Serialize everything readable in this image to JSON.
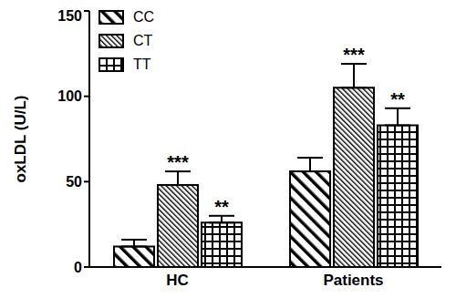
{
  "chart_data": {
    "type": "bar",
    "y_label": "oxLDL (U/L)",
    "categories": [
      "HC",
      "Patients"
    ],
    "ylim": [
      0,
      150
    ],
    "yticks": [
      0,
      50,
      100,
      150
    ],
    "grid": false,
    "legend": "upper left",
    "series": [
      {
        "name": "CC",
        "color": "#000000",
        "values": [
          12,
          56
        ],
        "errors": [
          4,
          8
        ],
        "annotations": [
          null,
          null
        ]
      },
      {
        "name": "CT",
        "color": "#000000",
        "values": [
          48,
          105
        ],
        "errors": [
          8,
          14
        ],
        "annotations": [
          "***",
          "***"
        ]
      },
      {
        "name": "TT",
        "color": "#000000",
        "values": [
          26,
          83
        ],
        "errors": [
          4,
          10
        ],
        "annotations": [
          "**",
          "**"
        ]
      }
    ]
  }
}
